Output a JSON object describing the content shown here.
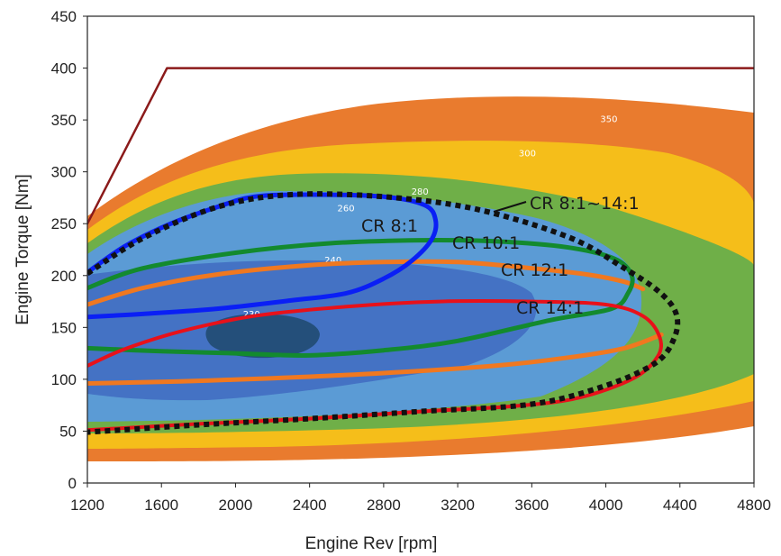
{
  "chart_data": {
    "type": "contour-line",
    "xlabel": "Engine Rev [rpm]",
    "ylabel": "Engine Torque [Nm]",
    "xlim": [
      1200,
      4800
    ],
    "ylim": [
      0,
      450
    ],
    "x_ticks": [
      "1200",
      "1600",
      "2000",
      "2400",
      "2800",
      "3200",
      "3600",
      "4000",
      "4400",
      "4800"
    ],
    "y_ticks": [
      "0",
      "50",
      "100",
      "150",
      "200",
      "250",
      "300",
      "350",
      "400",
      "450"
    ],
    "grid": false,
    "colors": {
      "bsfc_350": "#E97B2E",
      "bsfc_300": "#F5BE1A",
      "bsfc_280": "#6FAF48",
      "bsfc_260": "#5B9BD5",
      "bsfc_240": "#4472C4",
      "bsfc_230": "#244F7A",
      "max_torque": "#8B1A1A",
      "cr_8": "#0A1FF5",
      "cr_10": "#138A2E",
      "cr_12": "#F07820",
      "cr_14": "#E8111A",
      "cr_range": "#111111"
    },
    "contour_labels": [
      {
        "text": "350",
        "x": 3970,
        "y": 348
      },
      {
        "text": "300",
        "x": 3530,
        "y": 315
      },
      {
        "text": "280",
        "x": 2950,
        "y": 278
      },
      {
        "text": "260",
        "x": 2550,
        "y": 262
      },
      {
        "text": "240",
        "x": 2480,
        "y": 212
      },
      {
        "text": "230",
        "x": 2040,
        "y": 160
      }
    ],
    "series": [
      {
        "name": "max torque",
        "points": [
          [
            1200,
            250
          ],
          [
            1630,
            400
          ],
          [
            4800,
            400
          ]
        ]
      },
      {
        "name": "CR 8:1",
        "label": "CR 8:1",
        "points": [
          [
            1200,
            160
          ],
          [
            1500,
            163
          ],
          [
            1900,
            168
          ],
          [
            2300,
            176
          ],
          [
            2600,
            183
          ],
          [
            2800,
            197
          ],
          [
            2950,
            214
          ],
          [
            3060,
            235
          ],
          [
            3080,
            254
          ],
          [
            3020,
            268
          ],
          [
            2800,
            276
          ],
          [
            2400,
            278
          ],
          [
            2100,
            276
          ],
          [
            1900,
            266
          ],
          [
            1650,
            250
          ],
          [
            1400,
            228
          ],
          [
            1200,
            203
          ]
        ]
      },
      {
        "name": "CR 10:1",
        "label": "CR 10:1",
        "points": [
          [
            1200,
            188
          ],
          [
            1500,
            207
          ],
          [
            2000,
            222
          ],
          [
            2500,
            231
          ],
          [
            3000,
            234
          ],
          [
            3400,
            233
          ],
          [
            3800,
            227
          ],
          [
            4050,
            216
          ],
          [
            4140,
            200
          ],
          [
            4120,
            183
          ],
          [
            4030,
            168
          ],
          [
            3700,
            157
          ],
          [
            3200,
            137
          ],
          [
            2800,
            128
          ],
          [
            2400,
            123
          ],
          [
            2000,
            125
          ],
          [
            1600,
            127
          ],
          [
            1200,
            130
          ]
        ]
      },
      {
        "name": "CR 12:1",
        "label": "CR 12:1",
        "points": [
          [
            1200,
            172
          ],
          [
            1500,
            188
          ],
          [
            1900,
            201
          ],
          [
            2400,
            210
          ],
          [
            2800,
            213
          ],
          [
            3200,
            213
          ],
          [
            3600,
            207
          ],
          [
            3900,
            201
          ],
          [
            4100,
            194
          ],
          [
            4200,
            187
          ]
        ]
      },
      {
        "name": "CR 12:1 lower",
        "points": [
          [
            1200,
            96
          ],
          [
            1700,
            98
          ],
          [
            2200,
            101
          ],
          [
            2800,
            106
          ],
          [
            3400,
            113
          ],
          [
            3800,
            121
          ],
          [
            4100,
            130
          ],
          [
            4300,
            143
          ]
        ]
      },
      {
        "name": "CR 14:1",
        "label": "CR 14:1",
        "points": [
          [
            1200,
            113
          ],
          [
            1400,
            129
          ],
          [
            1700,
            146
          ],
          [
            2100,
            161
          ],
          [
            2600,
            170
          ],
          [
            3100,
            175
          ],
          [
            3600,
            175
          ],
          [
            4000,
            172
          ],
          [
            4200,
            161
          ],
          [
            4290,
            141
          ],
          [
            4280,
            122
          ],
          [
            4150,
            101
          ],
          [
            3850,
            82
          ],
          [
            3500,
            74
          ],
          [
            3000,
            69
          ],
          [
            2400,
            62
          ],
          [
            1800,
            57
          ],
          [
            1200,
            51
          ]
        ]
      },
      {
        "name": "CR 8:1~14:1",
        "label": "CR 8:1~14:1",
        "points": [
          [
            1200,
            202
          ],
          [
            1500,
            236
          ],
          [
            1900,
            266
          ],
          [
            2300,
            278
          ],
          [
            2800,
            276
          ],
          [
            3300,
            264
          ],
          [
            3800,
            237
          ],
          [
            4100,
            207
          ],
          [
            4290,
            184
          ],
          [
            4380,
            163
          ],
          [
            4370,
            140
          ],
          [
            4270,
            116
          ],
          [
            4000,
            94
          ],
          [
            3600,
            76
          ],
          [
            3000,
            69
          ],
          [
            2400,
            62
          ],
          [
            1800,
            56
          ],
          [
            1200,
            49
          ]
        ]
      }
    ]
  }
}
